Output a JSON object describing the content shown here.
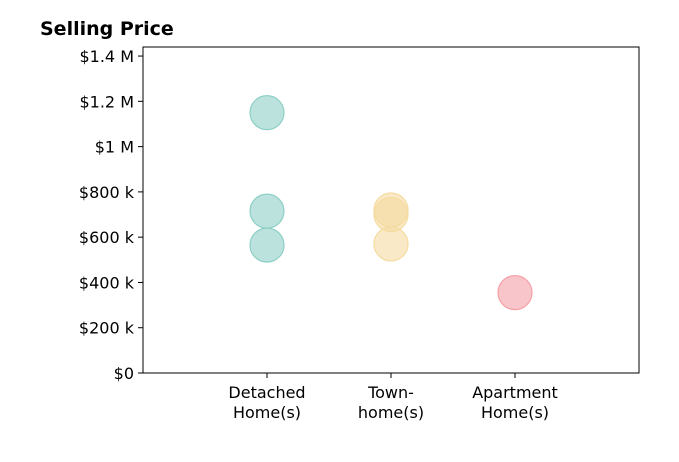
{
  "chart_data": {
    "type": "scatter",
    "title": "Selling Price",
    "xlabel": "",
    "ylabel": "",
    "ylim": [
      0,
      1440000
    ],
    "y_ticks": [
      {
        "value": 0,
        "label": "$0"
      },
      {
        "value": 200000,
        "label": "$200 k"
      },
      {
        "value": 400000,
        "label": "$400 k"
      },
      {
        "value": 600000,
        "label": "$600 k"
      },
      {
        "value": 800000,
        "label": "$800 k"
      },
      {
        "value": 1000000,
        "label": "$1 M"
      },
      {
        "value": 1200000,
        "label": "$1.2 M"
      },
      {
        "value": 1400000,
        "label": "$1.4 M"
      }
    ],
    "categories": [
      {
        "line1": "Detached",
        "line2": "Home(s)"
      },
      {
        "line1": "Town-",
        "line2": "home(s)"
      },
      {
        "line1": "Apartment",
        "line2": "Home(s)"
      }
    ],
    "grid": false,
    "legend": "none",
    "series": [
      {
        "category_index": 0,
        "color": "#8ecfc6",
        "values": [
          1150000,
          715000,
          565000
        ]
      },
      {
        "category_index": 1,
        "color": "#f5dba0",
        "values": [
          720000,
          700000,
          570000
        ]
      },
      {
        "category_index": 2,
        "color": "#f4a0a6",
        "values": [
          355000
        ]
      }
    ]
  }
}
